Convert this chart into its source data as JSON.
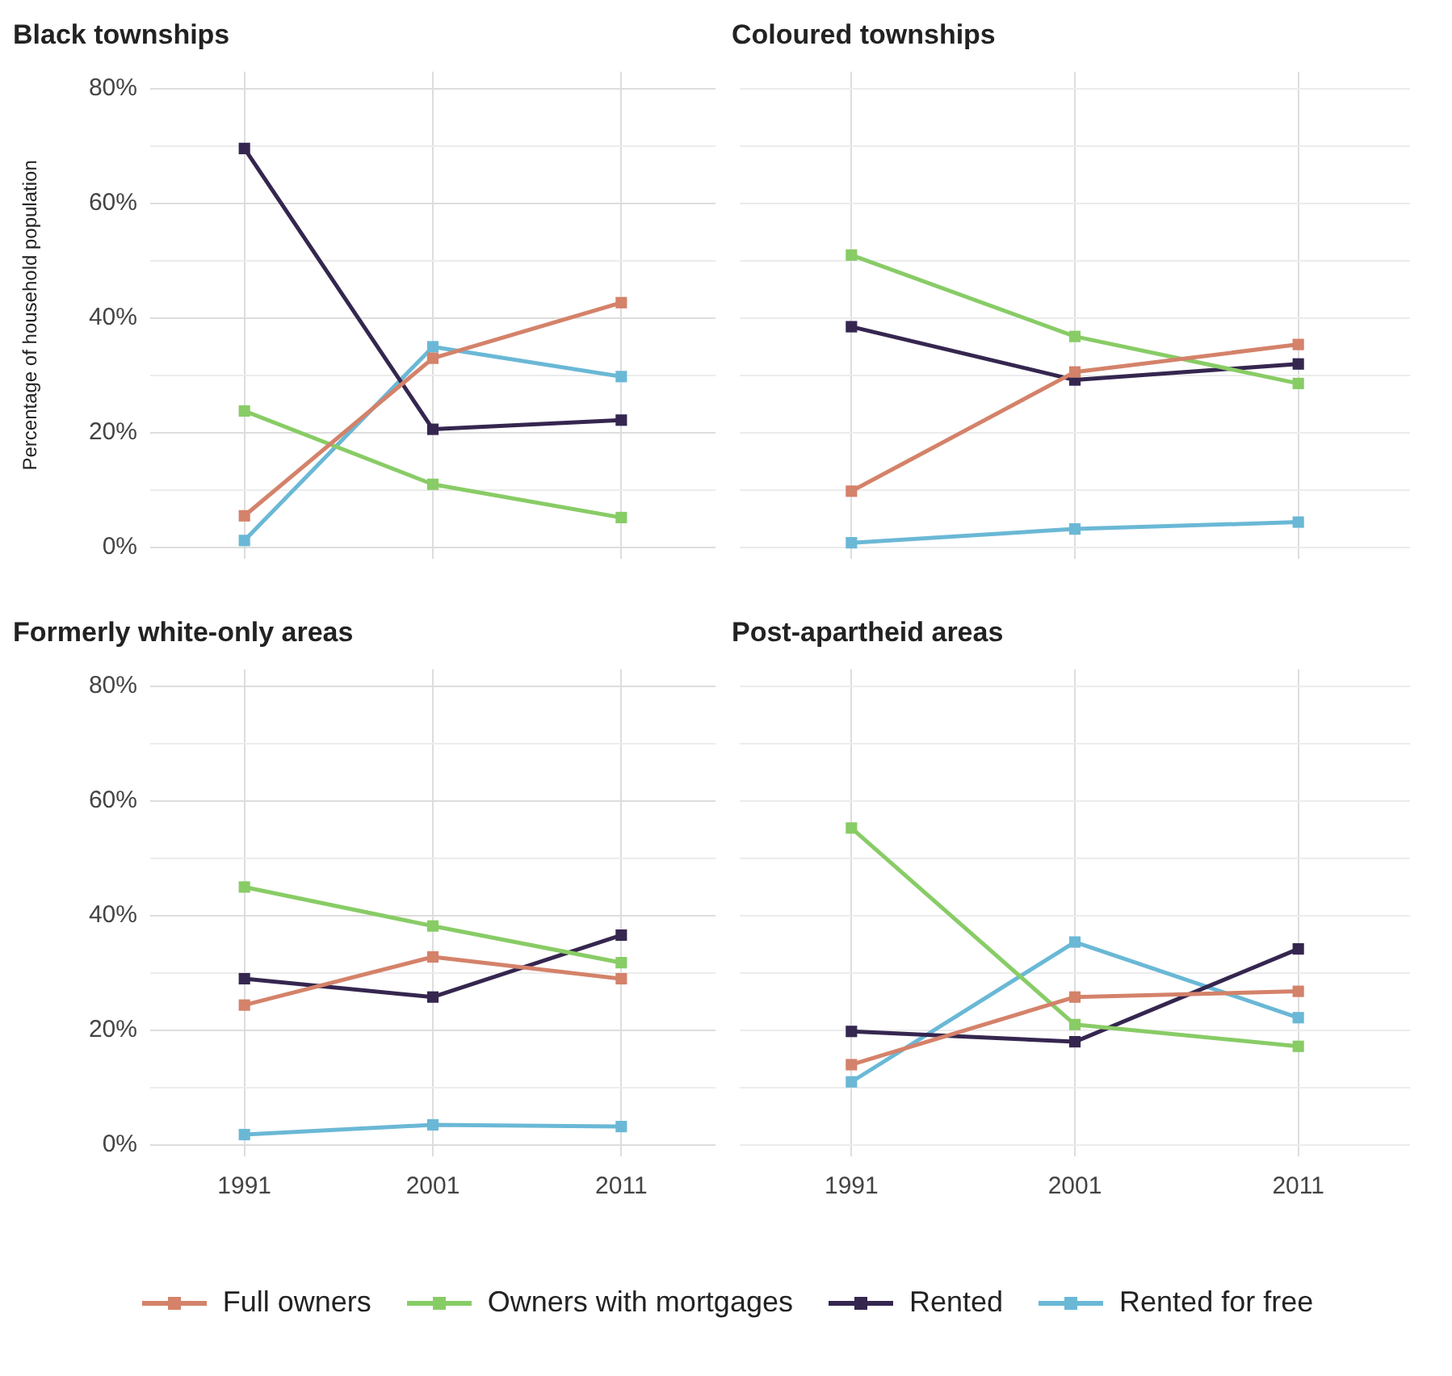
{
  "chart_data": [
    {
      "type": "line",
      "title": "Black townships",
      "ylabel": "Percentage of household population",
      "categories": [
        "1991",
        "2001",
        "2011"
      ],
      "ylim": [
        -2,
        83
      ],
      "yticks": [
        {
          "value": 0,
          "label": "0%"
        },
        {
          "value": 10,
          "label": null
        },
        {
          "value": 20,
          "label": "20%"
        },
        {
          "value": 30,
          "label": null
        },
        {
          "value": 40,
          "label": "40%"
        },
        {
          "value": 50,
          "label": null
        },
        {
          "value": 60,
          "label": "60%"
        },
        {
          "value": 70,
          "label": null
        },
        {
          "value": 80,
          "label": "80%"
        }
      ],
      "grid": true,
      "marker": "square",
      "line_style": "solid",
      "tick_labels": "y",
      "series": [
        {
          "color": "#d4826a",
          "values": [
            5.5,
            33,
            42.7
          ]
        },
        {
          "color": "#88cc66",
          "values": [
            23.8,
            11,
            5.2
          ]
        },
        {
          "color": "#35264f",
          "values": [
            69.6,
            20.6,
            22.2
          ]
        },
        {
          "color": "#6ab8d6",
          "values": [
            1.2,
            35,
            29.8
          ]
        }
      ]
    },
    {
      "type": "line",
      "title": "Coloured townships",
      "categories": [
        "1991",
        "2001",
        "2011"
      ],
      "ylim": [
        -2,
        83
      ],
      "yticks": [
        {
          "value": 0,
          "label": null
        },
        {
          "value": 10,
          "label": null
        },
        {
          "value": 20,
          "label": null
        },
        {
          "value": 30,
          "label": null
        },
        {
          "value": 40,
          "label": null
        },
        {
          "value": 50,
          "label": null
        },
        {
          "value": 60,
          "label": null
        },
        {
          "value": 70,
          "label": null
        },
        {
          "value": 80,
          "label": null
        }
      ],
      "grid": true,
      "marker": "square",
      "line_style": "solid",
      "tick_labels": false,
      "series": [
        {
          "color": "#d4826a",
          "values": [
            9.8,
            30.6,
            35.4
          ]
        },
        {
          "color": "#88cc66",
          "values": [
            51,
            36.8,
            28.6
          ]
        },
        {
          "color": "#35264f",
          "values": [
            38.5,
            29.2,
            32
          ]
        },
        {
          "color": "#6ab8d6",
          "values": [
            0.8,
            3.2,
            4.4
          ]
        }
      ]
    },
    {
      "type": "line",
      "title": "Formerly white-only areas",
      "categories": [
        "1991",
        "2001",
        "2011"
      ],
      "ylim": [
        -2,
        83
      ],
      "yticks": [
        {
          "value": 0,
          "label": "0%"
        },
        {
          "value": 10,
          "label": null
        },
        {
          "value": 20,
          "label": "20%"
        },
        {
          "value": 30,
          "label": null
        },
        {
          "value": 40,
          "label": "40%"
        },
        {
          "value": 50,
          "label": null
        },
        {
          "value": 60,
          "label": "60%"
        },
        {
          "value": 70,
          "label": null
        },
        {
          "value": 80,
          "label": "80%"
        }
      ],
      "grid": true,
      "marker": "square",
      "line_style": "solid",
      "series": [
        {
          "color": "#d4826a",
          "values": [
            24.4,
            32.8,
            29
          ]
        },
        {
          "color": "#88cc66",
          "values": [
            45,
            38.2,
            31.8
          ]
        },
        {
          "color": "#35264f",
          "values": [
            29,
            25.8,
            36.6
          ]
        },
        {
          "color": "#6ab8d6",
          "values": [
            1.8,
            3.5,
            3.2
          ]
        }
      ]
    },
    {
      "type": "line",
      "title": "Post-apartheid areas",
      "categories": [
        "1991",
        "2001",
        "2011"
      ],
      "ylim": [
        -2,
        83
      ],
      "yticks": [
        {
          "value": 0,
          "label": null
        },
        {
          "value": 10,
          "label": null
        },
        {
          "value": 20,
          "label": null
        },
        {
          "value": 30,
          "label": null
        },
        {
          "value": 40,
          "label": null
        },
        {
          "value": 50,
          "label": null
        },
        {
          "value": 60,
          "label": null
        },
        {
          "value": 70,
          "label": null
        },
        {
          "value": 80,
          "label": null
        }
      ],
      "grid": true,
      "marker": "square",
      "line_style": "solid",
      "legend": "bottom",
      "tick_labels": "x",
      "series": [
        {
          "name": "Full owners",
          "color": "#d4826a",
          "values": [
            14,
            25.8,
            26.8
          ]
        },
        {
          "name": "Owners with mortgages",
          "color": "#88cc66",
          "values": [
            55.3,
            21,
            17.2
          ]
        },
        {
          "name": "Rented",
          "color": "#35264f",
          "values": [
            19.8,
            18,
            34.2
          ]
        },
        {
          "name": "Rented for free",
          "color": "#6ab8d6",
          "values": [
            11,
            35.4,
            22.2
          ]
        }
      ]
    }
  ]
}
